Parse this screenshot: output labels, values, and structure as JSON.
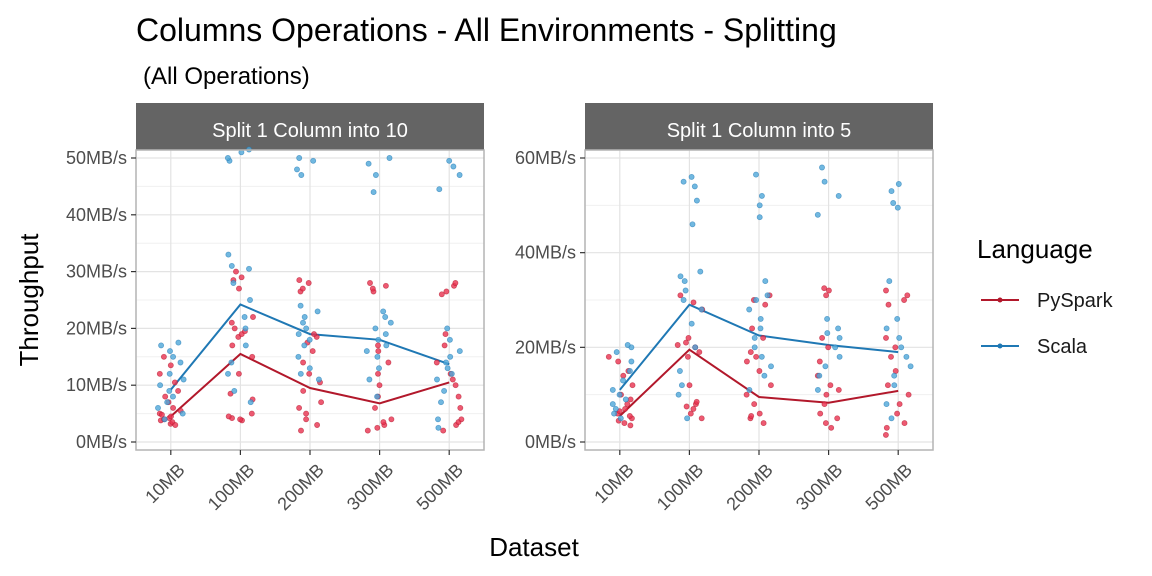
{
  "chart_data": {
    "type": "scatter",
    "title": "Columns Operations - All Environments - Splitting",
    "subtitle": "(All Operations)",
    "xlabel": "Dataset",
    "ylabel": "Throughput",
    "categories": [
      "10MB",
      "100MB",
      "200MB",
      "300MB",
      "500MB"
    ],
    "legend": {
      "title": "Language",
      "position": "right",
      "entries": [
        {
          "name": "PySpark",
          "color": "#B2182B"
        },
        {
          "name": "Scala",
          "color": "#1F78B4"
        }
      ]
    },
    "point_colors": {
      "PySpark": "#E8314F",
      "Scala": "#4EA6D8"
    },
    "grid": true,
    "panels": [
      {
        "title": "Split 1 Column into 10",
        "ylim": [
          0,
          50
        ],
        "yticks": [
          0,
          10,
          20,
          30,
          40,
          50
        ],
        "ytick_labels": [
          "0MB/s",
          "10MB/s",
          "20MB/s",
          "30MB/s",
          "40MB/s",
          "50MB/s"
        ],
        "series": [
          {
            "name": "PySpark",
            "values": [
              4.5,
              15.5,
              9.5,
              6.8,
              10.5
            ],
            "points": [
              [
                3.2,
                3.5,
                3.8,
                4.0,
                4.2,
                4.5,
                5.0,
                5.5,
                6.0,
                7.0,
                8.0,
                9.0,
                10.5,
                12.0,
                13.5,
                15.0,
                3.0,
                4.8
              ],
              [
                3.8,
                4.0,
                4.2,
                4.5,
                5.0,
                7.5,
                8.5,
                12.0,
                15.0,
                17.0,
                18.5,
                19.0,
                19.5,
                20.0,
                21.0,
                22.0,
                27.0,
                28.5,
                29.0,
                30.0
              ],
              [
                2.0,
                3.0,
                4.0,
                5.0,
                6.0,
                7.0,
                9.0,
                10.5,
                12.0,
                14.0,
                16.0,
                17.5,
                18.5,
                19.0,
                26.5,
                27.0,
                28.0,
                28.5
              ],
              [
                2.0,
                2.5,
                3.0,
                3.5,
                4.0,
                6.0,
                8.0,
                10.0,
                12.0,
                14.0,
                16.0,
                17.0,
                26.5,
                27.0,
                27.5,
                28.0
              ],
              [
                2.0,
                3.0,
                3.5,
                4.0,
                6.0,
                8.0,
                10.0,
                11.0,
                12.0,
                14.0,
                17.0,
                19.0,
                26.0,
                26.5,
                27.5,
                28.0
              ]
            ]
          },
          {
            "name": "Scala",
            "values": [
              9.2,
              24.2,
              19.0,
              18.0,
              13.7
            ],
            "points": [
              [
                4.0,
                5.0,
                6.0,
                7.0,
                8.0,
                9.0,
                10.0,
                11.0,
                12.0,
                14.0,
                15.0,
                16.0,
                17.0,
                17.5
              ],
              [
                7.0,
                9.0,
                12.0,
                14.0,
                17.0,
                20.0,
                22.0,
                25.0,
                28.0,
                30.5,
                31.0,
                33.0,
                49.5,
                50.0,
                51.0,
                51.5
              ],
              [
                11.0,
                12.0,
                13.0,
                15.0,
                17.0,
                18.0,
                19.0,
                20.0,
                21.0,
                22.0,
                23.0,
                24.0,
                47.0,
                48.0,
                49.5,
                50.0
              ],
              [
                8.0,
                11.0,
                13.0,
                15.0,
                16.0,
                17.0,
                18.0,
                19.0,
                20.0,
                21.0,
                22.0,
                23.0,
                44.0,
                47.0,
                49.0,
                50.0
              ],
              [
                2.5,
                4.0,
                7.0,
                9.0,
                11.0,
                12.0,
                13.0,
                14.0,
                15.0,
                16.0,
                18.0,
                20.0,
                44.5,
                47.0,
                48.5,
                49.5
              ]
            ]
          }
        ]
      },
      {
        "title": "Split 1 Column into 5",
        "ylim": [
          0,
          60
        ],
        "yticks": [
          0,
          20,
          40,
          60
        ],
        "ytick_labels": [
          "0MB/s",
          "20MB/s",
          "40MB/s",
          "60MB/s"
        ],
        "series": [
          {
            "name": "PySpark",
            "values": [
              5.5,
              19.5,
              9.5,
              8.3,
              10.8
            ],
            "points": [
              [
                3.5,
                4.0,
                4.5,
                5.0,
                5.5,
                6.0,
                6.5,
                7.0,
                8.0,
                9.0,
                10.0,
                12.0,
                14.0,
                15.0,
                17.0,
                18.0
              ],
              [
                5.0,
                6.0,
                7.0,
                7.5,
                8.0,
                8.5,
                12.0,
                18.0,
                19.0,
                20.0,
                20.5,
                21.0,
                22.0,
                28.0,
                29.5,
                31.0
              ],
              [
                4.0,
                5.0,
                5.5,
                6.0,
                8.0,
                10.0,
                12.0,
                15.0,
                17.0,
                18.0,
                19.0,
                22.0,
                24.0,
                29.0,
                30.0,
                31.0
              ],
              [
                3.0,
                4.0,
                5.0,
                6.0,
                8.0,
                10.0,
                11.0,
                12.0,
                14.0,
                17.0,
                20.0,
                22.0,
                31.0,
                32.0,
                32.5
              ],
              [
                1.5,
                3.0,
                4.0,
                6.0,
                8.0,
                10.0,
                12.0,
                15.0,
                18.0,
                20.0,
                22.0,
                29.0,
                30.0,
                31.0,
                32.0
              ]
            ]
          },
          {
            "name": "Scala",
            "values": [
              11.0,
              29.0,
              22.5,
              20.5,
              19.0
            ],
            "points": [
              [
                5.0,
                6.0,
                7.0,
                8.0,
                9.0,
                10.0,
                11.0,
                13.0,
                15.0,
                17.0,
                19.0,
                20.0,
                20.5
              ],
              [
                5.0,
                10.0,
                12.0,
                15.0,
                20.0,
                25.0,
                28.0,
                30.0,
                32.0,
                34.0,
                35.0,
                36.0,
                46.0,
                51.0,
                54.0,
                55.0,
                56.0
              ],
              [
                11.0,
                14.0,
                16.0,
                18.0,
                20.0,
                22.0,
                24.0,
                26.0,
                28.0,
                30.0,
                31.0,
                34.0,
                47.5,
                50.0,
                52.0,
                56.5
              ],
              [
                11.0,
                14.0,
                16.0,
                18.0,
                20.0,
                22.0,
                23.0,
                24.0,
                26.0,
                48.0,
                52.0,
                55.0,
                58.0
              ],
              [
                5.0,
                8.0,
                12.0,
                14.0,
                16.0,
                18.0,
                20.0,
                22.0,
                24.0,
                26.0,
                34.0,
                49.5,
                50.5,
                53.0,
                54.5
              ]
            ]
          }
        ]
      }
    ]
  }
}
